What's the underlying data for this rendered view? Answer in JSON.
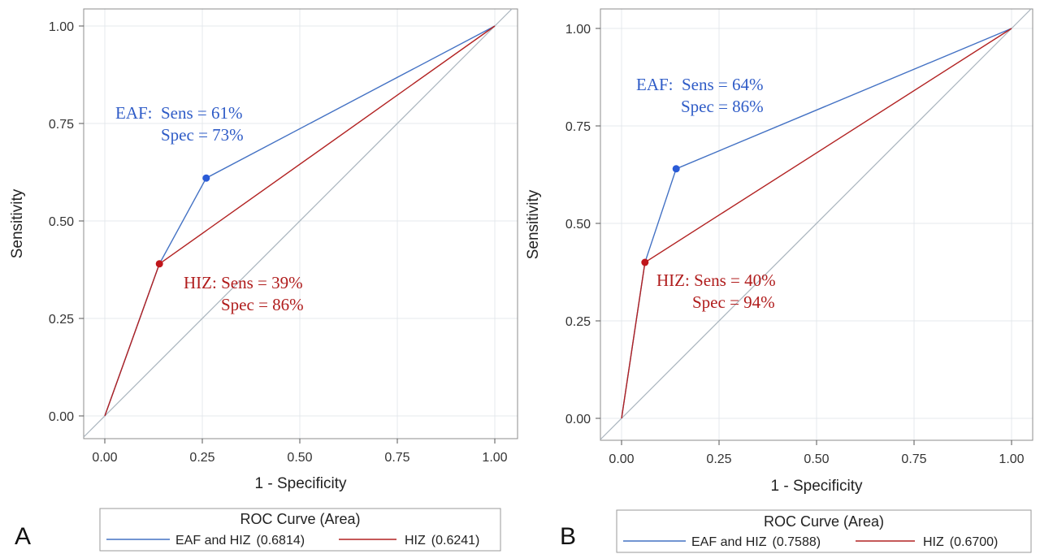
{
  "chart_data": [
    {
      "type": "line",
      "panel_label": "A",
      "xlabel": "1 - Specificity",
      "ylabel": "Sensitivity",
      "xlim": [
        0,
        1
      ],
      "ylim": [
        0,
        1
      ],
      "xticks": [
        "0.00",
        "0.25",
        "0.50",
        "0.75",
        "1.00"
      ],
      "yticks": [
        "0.00",
        "0.25",
        "0.50",
        "0.75",
        "1.00"
      ],
      "grid": true,
      "reference_diagonal": true,
      "series": [
        {
          "name": "EAF and HIZ",
          "area_label": "(0.6814)",
          "color": "#4472c4",
          "x": [
            0,
            0.14,
            0.26,
            1
          ],
          "y": [
            0,
            0.39,
            0.61,
            1
          ]
        },
        {
          "name": "HIZ",
          "area_label": "(0.6241)",
          "color": "#b22222",
          "x": [
            0,
            0.14,
            1
          ],
          "y": [
            0,
            0.39,
            1
          ]
        }
      ],
      "markers": [
        {
          "x": 0.26,
          "y": 0.61,
          "color": "#2a5bd7"
        },
        {
          "x": 0.14,
          "y": 0.39,
          "color": "#c0161b"
        }
      ],
      "annotations": [
        {
          "lines": [
            "EAF:  Sens = 61%",
            "Spec = 73%"
          ],
          "color": "#2f5cc7"
        },
        {
          "lines": [
            "HIZ: Sens = 39%",
            "Spec = 86%"
          ],
          "color": "#b01c1c"
        }
      ],
      "legend": {
        "title": "ROC Curve (Area)",
        "placement": "bottom"
      }
    },
    {
      "type": "line",
      "panel_label": "B",
      "xlabel": "1 - Specificity",
      "ylabel": "Sensitivity",
      "xlim": [
        0,
        1
      ],
      "ylim": [
        0,
        1
      ],
      "xticks": [
        "0.00",
        "0.25",
        "0.50",
        "0.75",
        "1.00"
      ],
      "yticks": [
        "0.00",
        "0.25",
        "0.50",
        "0.75",
        "1.00"
      ],
      "grid": true,
      "reference_diagonal": true,
      "series": [
        {
          "name": "EAF and HIZ",
          "area_label": "(0.7588)",
          "color": "#4472c4",
          "x": [
            0,
            0.06,
            0.14,
            1
          ],
          "y": [
            0,
            0.4,
            0.64,
            1
          ]
        },
        {
          "name": "HIZ",
          "area_label": "(0.6700)",
          "color": "#b22222",
          "x": [
            0,
            0.06,
            1
          ],
          "y": [
            0,
            0.4,
            1
          ]
        }
      ],
      "markers": [
        {
          "x": 0.14,
          "y": 0.64,
          "color": "#2a5bd7"
        },
        {
          "x": 0.06,
          "y": 0.4,
          "color": "#c0161b"
        }
      ],
      "annotations": [
        {
          "lines": [
            "EAF:  Sens = 64%",
            "Spec = 86%"
          ],
          "color": "#2f5cc7"
        },
        {
          "lines": [
            "HIZ: Sens = 40%",
            "Spec = 94%"
          ],
          "color": "#b01c1c"
        }
      ],
      "legend": {
        "title": "ROC Curve (Area)",
        "placement": "bottom"
      }
    }
  ]
}
